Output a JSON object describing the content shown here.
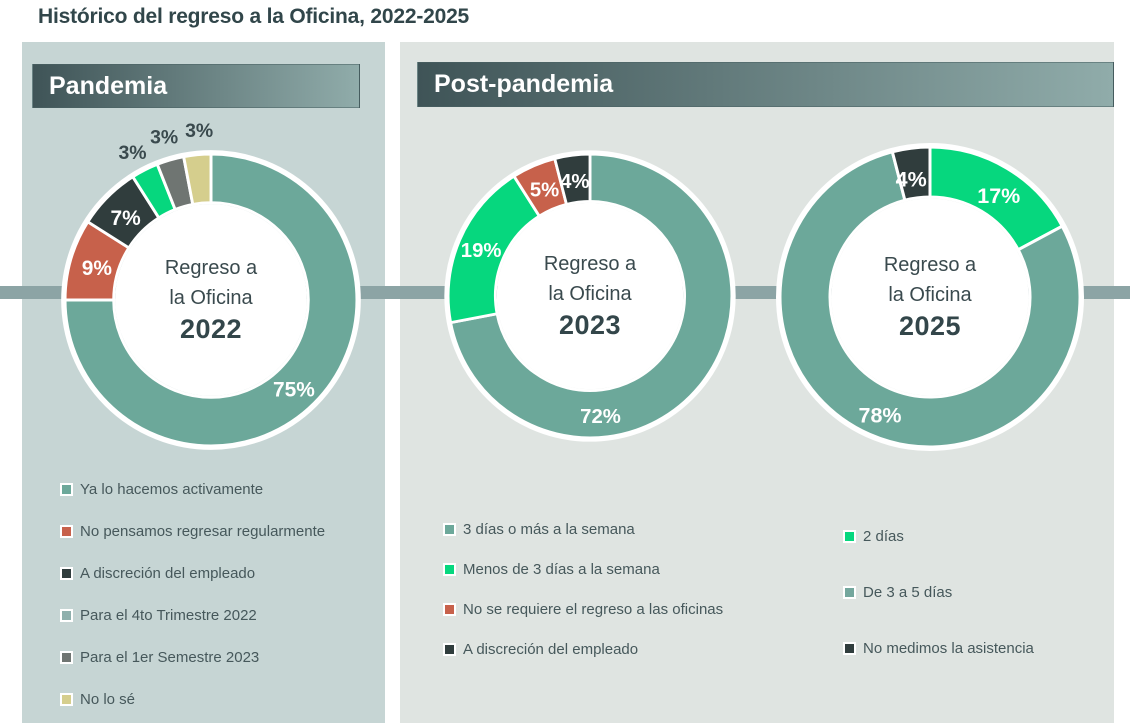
{
  "title": "Histórico del regreso a la Oficina, 2022-2025",
  "colors": {
    "teal": "#6CA89A",
    "bright_green": "#06D77E",
    "terracotta": "#C7614B",
    "dark_slate": "#303D3D",
    "gray": "#6F7572",
    "khaki": "#D5CE8D",
    "panel_pandemia_bg": "#C6D5D4",
    "panel_post_bg": "#DFE4E1",
    "timeline_bar": "#8CA4A5",
    "header_gradient_start": "#3F5457",
    "header_gradient_end": "#90ACAA",
    "title_text": "#31464A",
    "legend_text": "#46585B",
    "inside_label_text": "#FFFFFF",
    "outside_label_text": "#3A4A4E"
  },
  "panels": {
    "pandemia": {
      "header": "Pandemia",
      "legend": [
        {
          "label": "Ya lo hacemos activamente",
          "swatch": "#6CA89A"
        },
        {
          "label": "No pensamos regresar regularmente",
          "swatch": "#C7614B"
        },
        {
          "label": "A discreción del empleado",
          "swatch": "#303D3D"
        },
        {
          "label": "Para el 4to Trimestre 2022",
          "swatch": "#8FB0AD"
        },
        {
          "label": "Para el 1er Semestre 2023",
          "swatch": "#6F7572"
        },
        {
          "label": "No lo sé",
          "swatch": "#D5CE8D"
        }
      ]
    },
    "post_pandemia": {
      "header": "Post-pandemia",
      "legend_2023": [
        {
          "label": "3 días o más a la semana",
          "swatch": "#6CA89A"
        },
        {
          "label": "Menos de 3 días a la semana",
          "swatch": "#06D77E"
        },
        {
          "label": "No se requiere el regreso a las oficinas",
          "swatch": "#C7614B"
        },
        {
          "label": "A discreción del empleado",
          "swatch": "#303D3D"
        }
      ],
      "legend_2025": [
        {
          "label": "2 días",
          "swatch": "#06D77E"
        },
        {
          "label": "De 3 a 5 días",
          "swatch": "#74A79D"
        },
        {
          "label": "No medimos la asistencia",
          "swatch": "#303D3D"
        }
      ]
    }
  },
  "chart_data": [
    {
      "type": "pie",
      "subtype": "donut",
      "year": "2022",
      "center_line1": "Regreso a",
      "center_line2": "la Oficina",
      "legend_position": "below",
      "slices": [
        {
          "name": "Ya lo hacemos activamente",
          "value": 75,
          "label": "75%",
          "color": "#6CA89A",
          "label_angle": 137,
          "label_radius": 125,
          "outside": false
        },
        {
          "name": "No pensamos regresar regularmente",
          "value": 9,
          "label": "9%",
          "color": "#C7614B",
          "label_angle": 286,
          "label_radius": 122,
          "outside": false
        },
        {
          "name": "A discreción del empleado",
          "value": 7,
          "label": "7%",
          "color": "#303D3D",
          "label_angle": 314,
          "label_radius": 122,
          "outside": false
        },
        {
          "name": "Para el 4to Trimestre 2022",
          "value": 3,
          "label": "3%",
          "color": "#06D77E",
          "label_angle": 332,
          "label_radius": 172,
          "outside": true
        },
        {
          "name": "Para el 1er Semestre 2023",
          "value": 3,
          "label": "3%",
          "color": "#6F7572",
          "label_angle": 344,
          "label_radius": 175,
          "outside": true
        },
        {
          "name": "No lo sé",
          "value": 3,
          "label": "3%",
          "color": "#D5CE8D",
          "label_angle": 356,
          "label_radius": 175,
          "outside": true
        }
      ]
    },
    {
      "type": "pie",
      "subtype": "donut",
      "year": "2023",
      "center_line1": "Regreso a",
      "center_line2": "la Oficina",
      "legend_position": "below",
      "slices": [
        {
          "name": "3 días o más a la semana",
          "value": 72,
          "label": "72%",
          "color": "#6CA89A",
          "label_angle": 175,
          "label_radius": 127,
          "outside": false
        },
        {
          "name": "Menos de 3 días a la semana",
          "value": 19,
          "label": "19%",
          "color": "#06D77E",
          "label_angle": 293,
          "label_radius": 125,
          "outside": false
        },
        {
          "name": "No se requiere el regreso a las oficinas",
          "value": 5,
          "label": "5%",
          "color": "#C7614B",
          "label_angle": 337,
          "label_radius": 123,
          "outside": false
        },
        {
          "name": "A discreción del empleado",
          "value": 4,
          "label": "4%",
          "color": "#303D3D",
          "label_angle": 352.5,
          "label_radius": 123,
          "outside": false
        }
      ]
    },
    {
      "type": "pie",
      "subtype": "donut",
      "year": "2025",
      "center_line1": "Regreso a",
      "center_line2": "la Oficina",
      "legend_position": "below",
      "slices": [
        {
          "name": "2 días",
          "value": 17,
          "label": "17%",
          "color": "#06D77E",
          "label_angle": 34,
          "label_radius": 123,
          "outside": false
        },
        {
          "name": "De 3 a 5 días",
          "value": 78,
          "label": "78%",
          "color": "#6CA89A",
          "label_angle": 203,
          "label_radius": 128,
          "outside": false
        },
        {
          "name": "No medimos la asistencia",
          "value": 4,
          "label": "4%",
          "color": "#303D3D",
          "label_angle": 351,
          "label_radius": 120,
          "outside": false
        }
      ]
    }
  ]
}
